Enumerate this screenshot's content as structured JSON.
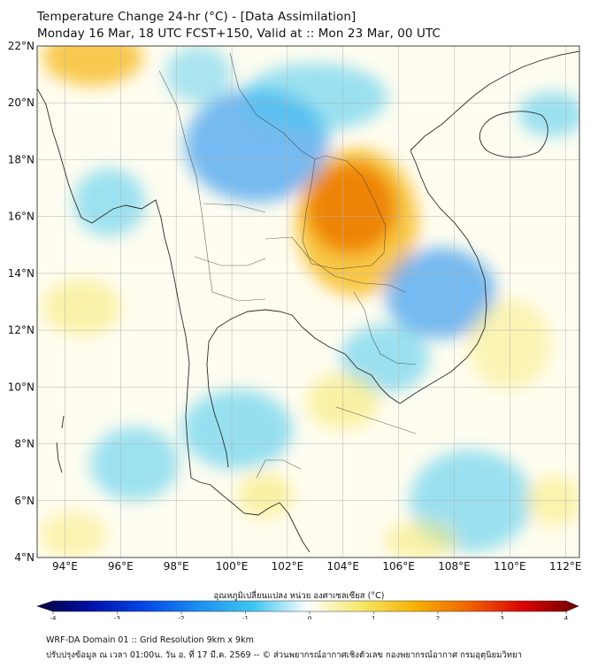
{
  "header": {
    "title_line1": "Temperature Change 24-hr (°C) - [Data Assimilation]",
    "title_line2": "Monday 16 Mar, 18 UTC FCST+150, Valid at :: Mon 23 Mar, 00 UTC"
  },
  "map": {
    "lat_range": [
      4,
      22
    ],
    "lon_range": [
      93,
      112.5
    ],
    "lat_labels": [
      "22°N",
      "20°N",
      "18°N",
      "16°N",
      "14°N",
      "12°N",
      "10°N",
      "8°N",
      "6°N",
      "4°N"
    ],
    "lat_values": [
      22,
      20,
      18,
      16,
      14,
      12,
      10,
      8,
      6,
      4
    ],
    "lon_labels": [
      "94°E",
      "96°E",
      "98°E",
      "100°E",
      "102°E",
      "104°E",
      "106°E",
      "108°E",
      "110°E",
      "112°E"
    ],
    "lon_values": [
      94,
      96,
      98,
      100,
      102,
      104,
      106,
      108,
      110,
      112
    ],
    "anomalies": [
      {
        "lon": 104.3,
        "lat": 16.3,
        "rx": 1.6,
        "ry": 1.6,
        "value": 3.2
      },
      {
        "lon": 104.5,
        "lat": 15.8,
        "rx": 2.2,
        "ry": 2.6,
        "value": 1.8
      },
      {
        "lon": 95.0,
        "lat": 21.6,
        "rx": 1.8,
        "ry": 1.0,
        "value": 1.6
      },
      {
        "lon": 100.9,
        "lat": 18.5,
        "rx": 2.6,
        "ry": 2.0,
        "value": -1.3
      },
      {
        "lon": 103.0,
        "lat": 20.2,
        "rx": 2.6,
        "ry": 1.2,
        "value": -0.9
      },
      {
        "lon": 107.5,
        "lat": 13.3,
        "rx": 2.0,
        "ry": 1.6,
        "value": -1.3
      },
      {
        "lon": 105.5,
        "lat": 11.0,
        "rx": 1.6,
        "ry": 1.2,
        "value": -0.9
      },
      {
        "lon": 111.5,
        "lat": 19.6,
        "rx": 1.2,
        "ry": 0.8,
        "value": -0.9
      },
      {
        "lon": 95.6,
        "lat": 16.5,
        "rx": 1.3,
        "ry": 1.2,
        "value": -0.8
      },
      {
        "lon": 100.2,
        "lat": 8.5,
        "rx": 2.0,
        "ry": 1.4,
        "value": -1.0
      },
      {
        "lon": 96.5,
        "lat": 7.3,
        "rx": 1.6,
        "ry": 1.3,
        "value": -0.8
      },
      {
        "lon": 108.6,
        "lat": 6.0,
        "rx": 2.2,
        "ry": 1.8,
        "value": -0.9
      },
      {
        "lon": 104.0,
        "lat": 9.5,
        "rx": 1.3,
        "ry": 1.0,
        "value": 1.0
      },
      {
        "lon": 101.2,
        "lat": 6.2,
        "rx": 1.0,
        "ry": 0.8,
        "value": 1.0
      },
      {
        "lon": 94.6,
        "lat": 12.8,
        "rx": 1.4,
        "ry": 1.0,
        "value": 0.8
      },
      {
        "lon": 111.6,
        "lat": 6.0,
        "rx": 1.0,
        "ry": 0.9,
        "value": 0.7
      },
      {
        "lon": 94.3,
        "lat": 4.8,
        "rx": 1.2,
        "ry": 0.8,
        "value": 0.6
      },
      {
        "lon": 106.8,
        "lat": 4.6,
        "rx": 1.3,
        "ry": 0.7,
        "value": 0.8
      },
      {
        "lon": 110.0,
        "lat": 11.5,
        "rx": 1.5,
        "ry": 1.6,
        "value": 0.4
      },
      {
        "lon": 98.8,
        "lat": 21.0,
        "rx": 1.2,
        "ry": 1.0,
        "value": -0.5
      }
    ]
  },
  "colorbar": {
    "label": "อุณหภูมิเปลี่ยนแปลง หน่วย องศาเซลเซียส (°C)",
    "ticks": [
      "-4",
      "-3",
      "-2",
      "-1",
      "0",
      "1",
      "2",
      "3",
      "4"
    ],
    "tick_values": [
      -4,
      -3,
      -2,
      -1,
      0,
      1,
      2,
      3,
      4
    ],
    "range": [
      -4,
      4
    ],
    "colors": [
      "#05003c",
      "#0010a8",
      "#0048e8",
      "#1c90f0",
      "#3fc6f0",
      "#ffffff",
      "#f6e866",
      "#f5b000",
      "#f06000",
      "#d80000",
      "#6e0000"
    ]
  },
  "footer": {
    "line1": "WRF-DA Domain 01 :: Grid Resolution 9km x 9km",
    "line2": "ปรับปรุงข้อมูล ณ เวลา 01:00น. วัน อ. ที่ 17 มี.ค. 2569 -- © ส่วนพยากรณ์อากาศเชิงตัวเลข กองพยากรณ์อากาศ กรมอุตุนิยมวิทยา"
  }
}
